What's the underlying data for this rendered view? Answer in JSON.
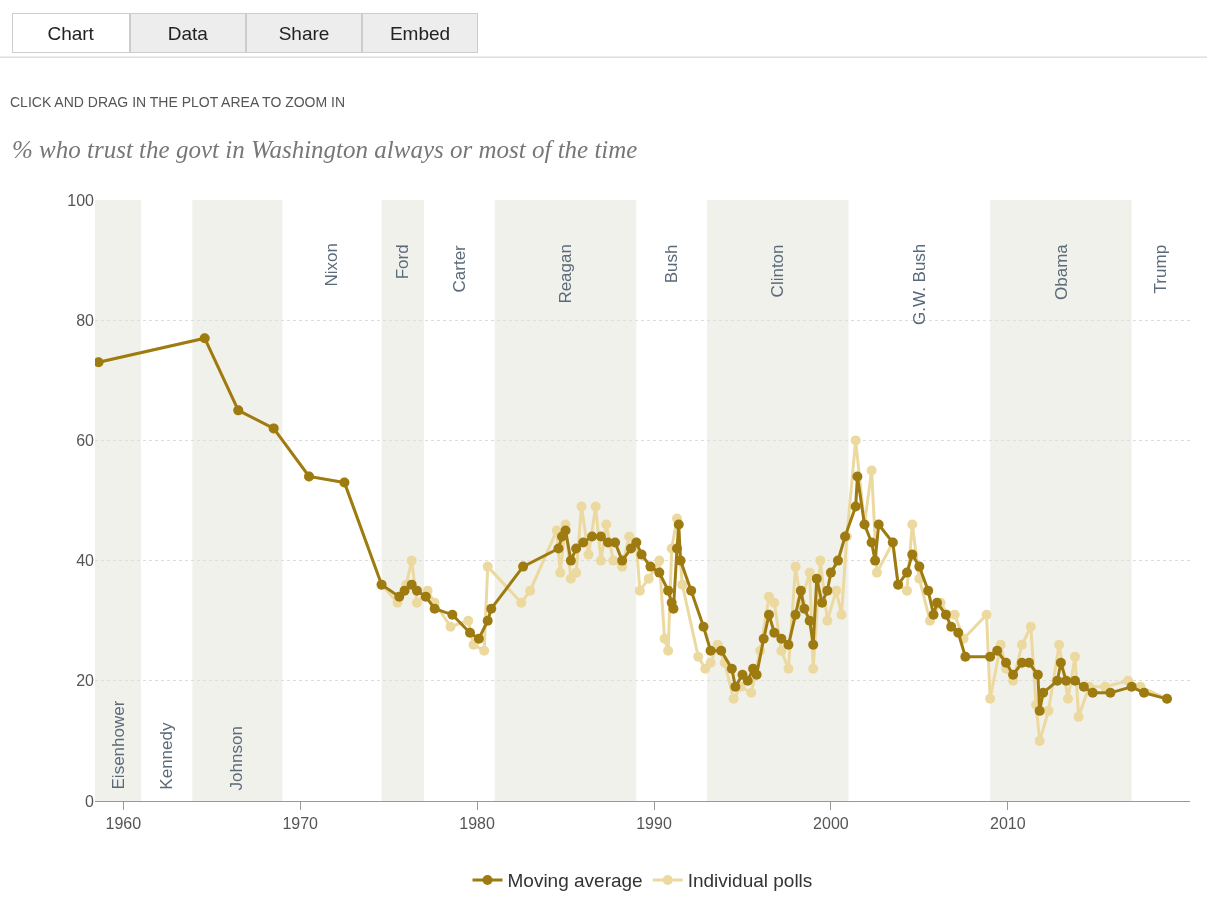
{
  "chart_data": {
    "type": "line",
    "title": "% who trust the govt in Washington always or most of the time",
    "annotations": [
      "Chart",
      "Data",
      "Share",
      "Embed",
      "CLICK AND DRAG IN THE PLOT AREA TO ZOOM IN",
      "Kennedy",
      "Nixon",
      "Carter",
      "Bush",
      "G.W. Bush",
      "Trump"
    ],
    "xlim": [
      1958.4,
      2020.3
    ],
    "xticks": [
      1960,
      1970,
      1980,
      1990,
      2000,
      2010
    ],
    "ylim": [
      0,
      100
    ],
    "yticks": [
      0,
      20,
      40,
      60,
      80,
      100
    ],
    "grid": "y",
    "legend": "bottom",
    "marker": "circle",
    "line_style": "solid",
    "bands": [
      {
        "axis": "x",
        "from": 1958.4,
        "to": 1961,
        "label": "Eisenhower",
        "color": "#f1f1ec"
      },
      {
        "axis": "x",
        "from": 1963.9,
        "to": 1969,
        "label": "Johnson",
        "color": "#f1f1ec"
      },
      {
        "axis": "x",
        "from": 1974.6,
        "to": 1977,
        "label": "Ford",
        "color": "#f1f1ec"
      },
      {
        "axis": "x",
        "from": 1981,
        "to": 1989,
        "label": "Reagan",
        "color": "#f1f1ec"
      },
      {
        "axis": "x",
        "from": 1993,
        "to": 2001,
        "label": "Clinton",
        "color": "#f1f1ec"
      },
      {
        "axis": "x",
        "from": 2009,
        "to": 2017,
        "label": "Obama",
        "color": "#f1f1ec"
      }
    ],
    "series": [
      {
        "name": "Individual polls",
        "color": "#ecd9a0",
        "x": [
          1958.6,
          1964.6,
          1966.5,
          1968.5,
          1970.5,
          1972.5,
          1974.6,
          1975.5,
          1976.0,
          1976.3,
          1976.6,
          1977.2,
          1977.6,
          1978.5,
          1979.5,
          1979.8,
          1980.4,
          1980.6,
          1982.5,
          1983.0,
          1984.5,
          1984.7,
          1985.0,
          1985.3,
          1985.6,
          1985.9,
          1986.3,
          1986.7,
          1987.0,
          1987.3,
          1987.7,
          1988.2,
          1988.6,
          1989.0,
          1989.2,
          1989.7,
          1990.3,
          1990.6,
          1990.8,
          1991.0,
          1991.3,
          1991.6,
          1992.5,
          1992.9,
          1993.2,
          1993.6,
          1994.0,
          1994.5,
          1994.9,
          1995.5,
          1996.0,
          1996.5,
          1996.8,
          1997.2,
          1997.6,
          1998.0,
          1998.3,
          1998.8,
          1999.0,
          1999.4,
          1999.8,
          2000.3,
          2000.6,
          2000.9,
          2001.4,
          2001.9,
          2002.3,
          2002.6,
          2003.5,
          2003.8,
          2004.3,
          2004.6,
          2005.0,
          2005.6,
          2006.2,
          2006.6,
          2007.0,
          2007.5,
          2008.8,
          2009.0,
          2009.6,
          2009.9,
          2010.3,
          2010.8,
          2011.3,
          2011.6,
          2011.8,
          2012.3,
          2012.9,
          2013.4,
          2013.8,
          2014.0,
          2014.6,
          2015.5,
          2016.8,
          2017.5,
          2019.0
        ],
        "values": [
          73,
          77,
          65,
          62,
          54,
          53,
          36,
          33,
          36,
          40,
          33,
          35,
          33,
          29,
          30,
          26,
          25,
          39,
          33,
          35,
          45,
          38,
          46,
          37,
          38,
          49,
          41,
          49,
          40,
          46,
          40,
          39,
          44,
          43,
          35,
          37,
          40,
          27,
          25,
          42,
          47,
          36,
          24,
          22,
          23,
          26,
          23,
          17,
          19,
          18,
          25,
          34,
          33,
          25,
          22,
          39,
          33,
          38,
          22,
          40,
          30,
          35,
          31,
          44,
          60,
          46,
          55,
          38,
          43,
          36,
          35,
          46,
          37,
          30,
          33,
          31,
          31,
          27,
          31,
          17,
          26,
          22,
          20,
          26,
          29,
          16,
          10,
          15,
          26,
          17,
          24,
          14,
          19,
          19,
          20,
          19,
          17
        ]
      },
      {
        "name": "Moving average",
        "color": "#9e7b10",
        "x": [
          1958.6,
          1964.6,
          1966.5,
          1968.5,
          1970.5,
          1972.5,
          1974.6,
          1975.6,
          1975.9,
          1976.3,
          1976.6,
          1977.1,
          1977.6,
          1978.6,
          1979.6,
          1980.1,
          1980.6,
          1980.8,
          1982.6,
          1984.6,
          1984.8,
          1985.0,
          1985.3,
          1985.6,
          1986.0,
          1986.5,
          1987.0,
          1987.4,
          1987.8,
          1988.2,
          1988.7,
          1989.0,
          1989.3,
          1989.8,
          1990.3,
          1990.8,
          1991.0,
          1991.1,
          1991.3,
          1991.4,
          1991.5,
          1992.1,
          1992.8,
          1993.2,
          1993.8,
          1994.4,
          1994.6,
          1995.0,
          1995.3,
          1995.6,
          1995.8,
          1996.2,
          1996.5,
          1996.8,
          1997.2,
          1997.6,
          1998.0,
          1998.3,
          1998.5,
          1998.8,
          1999.0,
          1999.2,
          1999.5,
          1999.8,
          2000.0,
          2000.4,
          2000.8,
          2001.4,
          2001.5,
          2001.9,
          2002.3,
          2002.5,
          2002.7,
          2003.5,
          2003.8,
          2004.3,
          2004.6,
          2005.0,
          2005.5,
          2005.8,
          2006.0,
          2006.5,
          2006.8,
          2007.2,
          2007.6,
          2009.0,
          2009.4,
          2009.9,
          2010.3,
          2010.8,
          2011.2,
          2011.7,
          2011.8,
          2012.0,
          2012.8,
          2013.0,
          2013.3,
          2013.8,
          2014.3,
          2014.8,
          2015.8,
          2017.0,
          2017.7,
          2019.0
        ],
        "values": [
          73,
          77,
          65,
          62,
          54,
          53,
          36,
          34,
          35,
          36,
          35,
          34,
          32,
          31,
          28,
          27,
          30,
          32,
          39,
          42,
          44,
          45,
          40,
          42,
          43,
          44,
          44,
          43,
          43,
          40,
          42,
          43,
          41,
          39,
          38,
          35,
          33,
          32,
          42,
          46,
          40,
          35,
          29,
          25,
          25,
          22,
          19,
          21,
          20,
          22,
          21,
          27,
          31,
          28,
          27,
          26,
          31,
          35,
          32,
          30,
          26,
          37,
          33,
          35,
          38,
          40,
          44,
          49,
          54,
          46,
          43,
          40,
          46,
          43,
          36,
          38,
          41,
          39,
          35,
          31,
          33,
          31,
          29,
          28,
          24,
          24,
          25,
          23,
          21,
          23,
          23,
          21,
          15,
          18,
          20,
          23,
          20,
          20,
          19,
          18,
          18,
          19,
          18,
          17
        ]
      }
    ]
  }
}
